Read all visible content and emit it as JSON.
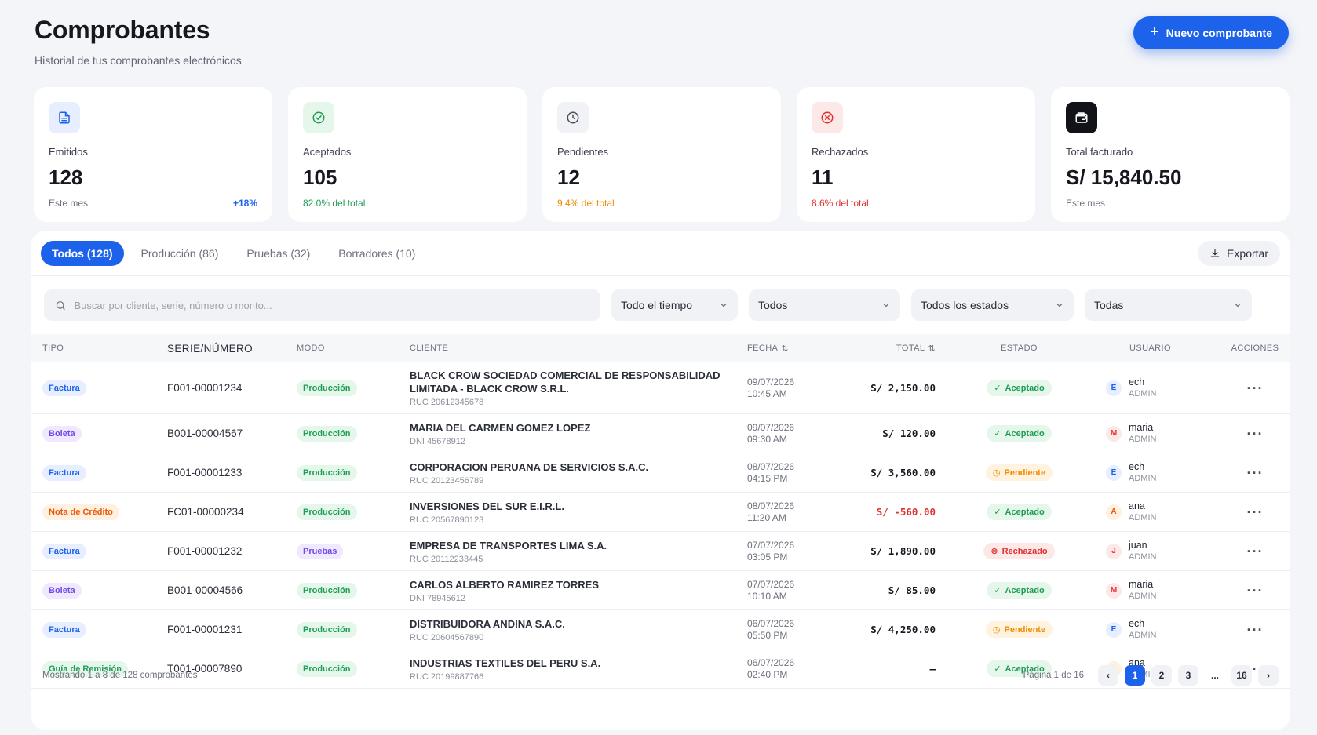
{
  "header": {
    "title": "Comprobantes",
    "subtitle": "Historial de tus comprobantes electrónicos",
    "new_button": "Nuevo comprobante"
  },
  "colors": {
    "primary": "#1d62ea",
    "success": "#1f9d55",
    "warning": "#f08c00",
    "danger": "#e03131"
  },
  "stats": [
    {
      "label": "Emitidos",
      "value": "128",
      "foot": "Este mes",
      "trend": "+18%",
      "icon": "document-icon"
    },
    {
      "label": "Aceptados",
      "value": "105",
      "foot": "82.0% del total",
      "icon": "check-circle-icon"
    },
    {
      "label": "Pendientes",
      "value": "12",
      "foot": "9.4% del total",
      "icon": "clock-icon"
    },
    {
      "label": "Rechazados",
      "value": "11",
      "foot": "8.6% del total",
      "icon": "x-circle-icon"
    },
    {
      "label": "Total facturado",
      "value": "S/ 15,840.50",
      "foot": "Este mes",
      "icon": "wallet-icon"
    }
  ],
  "tabs": [
    "Todos (128)",
    "Producción (86)",
    "Pruebas (32)",
    "Borradores (10)"
  ],
  "export_label": "Exportar",
  "search": {
    "placeholder": "Buscar por cliente, serie, número o monto..."
  },
  "filters": [
    "Todo el tiempo",
    "Todos",
    "Todos los estados",
    "Todas"
  ],
  "columns": [
    "TIPO",
    "SERIE/NÚMERO",
    "MODO",
    "CLIENTE",
    "FECHA",
    "TOTAL",
    "ESTADO",
    "USUARIO",
    "ACCIONES"
  ],
  "rows": [
    {
      "tipo": "Factura",
      "serie": "F001-00001234",
      "modo": "Producción",
      "cliente": "BLACK CROW SOCIEDAD COMERCIAL DE RESPONSABILIDAD LIMITADA - BLACK CROW S.R.L.",
      "doc": "RUC 20612345678",
      "fecha": "09/07/2026",
      "hora": "10:45 AM",
      "total": "S/ 2,150.00",
      "estado": "Aceptado",
      "user": "ech",
      "role": "ADMIN",
      "initial": "E"
    },
    {
      "tipo": "Boleta",
      "serie": "B001-00004567",
      "modo": "Producción",
      "cliente": "MARIA DEL CARMEN GOMEZ LOPEZ",
      "doc": "DNI 45678912",
      "fecha": "09/07/2026",
      "hora": "09:30 AM",
      "total": "S/ 120.00",
      "estado": "Aceptado",
      "user": "maria",
      "role": "ADMIN",
      "initial": "M"
    },
    {
      "tipo": "Factura",
      "serie": "F001-00001233",
      "modo": "Producción",
      "cliente": "CORPORACION PERUANA DE SERVICIOS S.A.C.",
      "doc": "RUC 20123456789",
      "fecha": "08/07/2026",
      "hora": "04:15 PM",
      "total": "S/ 3,560.00",
      "estado": "Pendiente",
      "user": "ech",
      "role": "ADMIN",
      "initial": "E"
    },
    {
      "tipo": "Nota de Crédito",
      "serie": "FC01-00000234",
      "modo": "Producción",
      "cliente": "INVERSIONES DEL SUR E.I.R.L.",
      "doc": "RUC 20567890123",
      "fecha": "08/07/2026",
      "hora": "11:20 AM",
      "total": "S/ -560.00",
      "estado": "Aceptado",
      "user": "ana",
      "role": "ADMIN",
      "initial": "A"
    },
    {
      "tipo": "Factura",
      "serie": "F001-00001232",
      "modo": "Pruebas",
      "cliente": "EMPRESA DE TRANSPORTES LIMA S.A.",
      "doc": "RUC 20112233445",
      "fecha": "07/07/2026",
      "hora": "03:05 PM",
      "total": "S/ 1,890.00",
      "estado": "Rechazado",
      "user": "juan",
      "role": "ADMIN",
      "initial": "J"
    },
    {
      "tipo": "Boleta",
      "serie": "B001-00004566",
      "modo": "Producción",
      "cliente": "CARLOS ALBERTO RAMIREZ TORRES",
      "doc": "DNI 78945612",
      "fecha": "07/07/2026",
      "hora": "10:10 AM",
      "total": "S/ 85.00",
      "estado": "Aceptado",
      "user": "maria",
      "role": "ADMIN",
      "initial": "M"
    },
    {
      "tipo": "Factura",
      "serie": "F001-00001231",
      "modo": "Producción",
      "cliente": "DISTRIBUIDORA ANDINA S.A.C.",
      "doc": "RUC 20604567890",
      "fecha": "06/07/2026",
      "hora": "05:50 PM",
      "total": "S/ 4,250.00",
      "estado": "Pendiente",
      "user": "ech",
      "role": "ADMIN",
      "initial": "E"
    },
    {
      "tipo": "Guía de Remisión",
      "serie": "T001-00007890",
      "modo": "Producción",
      "cliente": "INDUSTRIAS TEXTILES DEL PERU S.A.",
      "doc": "RUC 20199887766",
      "fecha": "06/07/2026",
      "hora": "02:40 PM",
      "total": "—",
      "estado": "Aceptado",
      "user": "ana",
      "role": "ADMIN",
      "initial": "A"
    }
  ],
  "footer": {
    "showing": "Mostrando 1 a 8 de 128 comprobantes",
    "page_info": "Página 1 de 16",
    "pages": [
      "1",
      "2",
      "3",
      "...",
      "16"
    ]
  }
}
